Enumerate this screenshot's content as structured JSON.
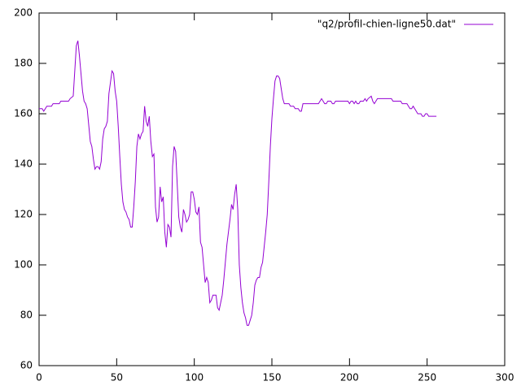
{
  "chart_data": {
    "type": "line",
    "x": [
      0,
      2,
      3,
      5,
      8,
      9,
      13,
      14,
      19,
      20,
      22,
      24,
      25,
      26,
      27,
      28,
      29,
      30,
      31,
      33,
      34,
      35,
      36,
      37,
      38,
      39,
      40,
      41,
      42,
      43,
      44,
      45,
      47,
      48,
      49,
      50,
      51,
      52,
      53,
      54,
      55,
      56,
      57,
      58,
      59,
      60,
      61,
      62,
      63,
      64,
      65,
      66,
      67,
      68,
      69,
      70,
      71,
      72,
      73,
      74,
      75,
      76,
      77,
      78,
      79,
      80,
      81,
      82,
      83,
      84,
      85,
      86,
      87,
      88,
      89,
      90,
      91,
      92,
      93,
      94,
      95,
      96,
      97,
      98,
      99,
      100,
      101,
      102,
      103,
      104,
      105,
      106,
      107,
      108,
      109,
      110,
      111,
      112,
      114,
      115,
      116,
      117,
      118,
      119,
      120,
      121,
      122,
      123,
      124,
      125,
      126,
      127,
      128,
      129,
      130,
      131,
      132,
      133,
      134,
      135,
      136,
      137,
      138,
      139,
      140,
      141,
      142,
      143,
      144,
      145,
      146,
      147,
      148,
      149,
      150,
      151,
      152,
      153,
      154,
      155,
      156,
      157,
      158,
      159,
      161,
      162,
      164,
      165,
      167,
      168,
      169,
      170,
      172,
      180,
      181,
      182,
      183,
      184,
      185,
      186,
      188,
      189,
      190,
      191,
      199,
      200,
      201,
      202,
      203,
      204,
      205,
      206,
      207,
      209,
      210,
      211,
      212,
      214,
      215,
      216,
      217,
      218,
      227,
      228,
      233,
      234,
      237,
      238,
      239,
      240,
      241,
      242,
      243,
      244,
      246,
      247,
      248,
      249,
      250,
      251,
      253,
      256
    ],
    "series": [
      {
        "name": "\"q2/profil-chien-ligne50.dat\"",
        "color": "#9400d3",
        "values": [
          162,
          162,
          161,
          163,
          163,
          164,
          164,
          165,
          165,
          166,
          167,
          187,
          189,
          183,
          176,
          169,
          165,
          164,
          162,
          149,
          147,
          142,
          138,
          139,
          139,
          138,
          141,
          150,
          154,
          155,
          157,
          168,
          177,
          176,
          169,
          165,
          155,
          143,
          132,
          125,
          122,
          121,
          119,
          118,
          115,
          115,
          123,
          133,
          147,
          152,
          150,
          152,
          153,
          163,
          157,
          155,
          159,
          149,
          143,
          144,
          123,
          117,
          119,
          131,
          125,
          127,
          113,
          107,
          116,
          115,
          111,
          139,
          147,
          145,
          132,
          119,
          115,
          113,
          122,
          120,
          117,
          118,
          120,
          129,
          129,
          126,
          121,
          120,
          123,
          109,
          107,
          100,
          93,
          95,
          93,
          85,
          86,
          88,
          88,
          83,
          82,
          85,
          88,
          94,
          101,
          108,
          113,
          118,
          124,
          122,
          128,
          132,
          122,
          100,
          91,
          85,
          81,
          79,
          76,
          76,
          78,
          80,
          85,
          92,
          94,
          95,
          95,
          99,
          101,
          107,
          113,
          120,
          133,
          147,
          158,
          166,
          173,
          175,
          175,
          174,
          170,
          166,
          164,
          164,
          164,
          163,
          163,
          162,
          162,
          161,
          161,
          164,
          164,
          164,
          165,
          166,
          165,
          164,
          164,
          165,
          165,
          164,
          164,
          165,
          165,
          164,
          165,
          165,
          164,
          165,
          164,
          164,
          165,
          165,
          166,
          165,
          166,
          167,
          165,
          164,
          165,
          166,
          166,
          165,
          165,
          164,
          164,
          163,
          162,
          162,
          163,
          162,
          161,
          160,
          160,
          159,
          159,
          160,
          160,
          159,
          159,
          159
        ]
      }
    ],
    "xlim": [
      0,
      300
    ],
    "xticks": [
      0,
      50,
      100,
      150,
      200,
      250,
      300
    ],
    "ylim": [
      60,
      200
    ],
    "yticks": [
      60,
      80,
      100,
      120,
      140,
      160,
      180,
      200
    ],
    "legend": "top-right"
  }
}
